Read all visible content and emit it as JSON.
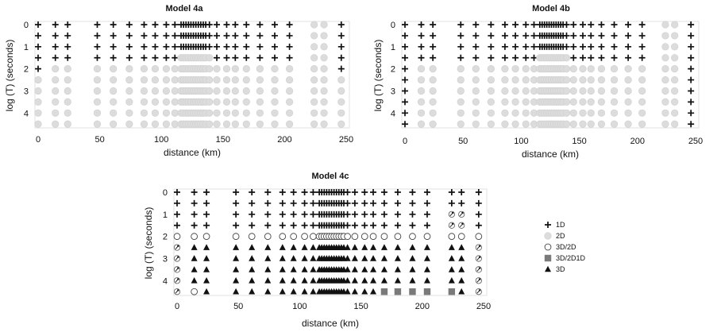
{
  "figure": {
    "panel_order": [
      "4a",
      "4b",
      "4c"
    ]
  },
  "legend": {
    "items": [
      {
        "key": "1D",
        "label": "1D"
      },
      {
        "key": "2D",
        "label": "2D"
      },
      {
        "key": "3D/2D",
        "label": "3D/2D"
      },
      {
        "key": "3D/2D1D",
        "label": "3D/2D1D"
      },
      {
        "key": "3D",
        "label": "3D"
      }
    ]
  },
  "chart_data": [
    {
      "id": "4a",
      "type": "scatter",
      "title": "Model 4a",
      "xlabel": "distance (km)",
      "ylabel": "log (T) (seconds)",
      "xlim": [
        0,
        250
      ],
      "ylim": [
        0,
        4.6
      ],
      "x_ticks": [
        "0",
        "50",
        "100",
        "150",
        "200",
        "250"
      ],
      "y_ticks": [
        "0",
        "1",
        "2",
        "3",
        "4"
      ],
      "y_inverted": true,
      "grid": false,
      "sites_km": [
        0,
        14,
        24,
        48,
        61,
        74,
        86,
        95,
        104,
        111,
        116,
        118,
        120,
        122,
        124,
        126,
        128,
        130,
        132,
        134,
        136,
        139,
        145,
        153,
        160,
        169,
        180,
        192,
        204,
        224,
        232,
        246
      ],
      "periods_logT": [
        0,
        0.5,
        1.0,
        1.5,
        2.0,
        2.5,
        3.0,
        3.5,
        4.0,
        4.5
      ],
      "classification_rule": [
        {
          "x_km": [
            0,
            0
          ],
          "logT_max": 2.0,
          "class": "1D"
        },
        {
          "x_km": [
            246,
            246
          ],
          "logT_max": 2.0,
          "class": "1D"
        },
        {
          "x_km": [
            14,
            74
          ],
          "logT_max": 1.5,
          "class": "1D"
        },
        {
          "x_km": [
            86,
            111
          ],
          "logT_max": 1.5,
          "class": "1D"
        },
        {
          "x_km": [
            116,
            139
          ],
          "logT_max": 1.0,
          "class": "1D"
        },
        {
          "x_km": [
            145,
            204
          ],
          "logT_max": 1.5,
          "class": "1D"
        },
        {
          "x_km": [
            224,
            232
          ],
          "logT_max": -1,
          "class": "1D"
        }
      ],
      "default_class": "2D"
    },
    {
      "id": "4b",
      "type": "scatter",
      "title": "Model 4b",
      "xlabel": "distance (km)",
      "ylabel": "log (T) (seconds)",
      "xlim": [
        0,
        250
      ],
      "ylim": [
        0,
        4.6
      ],
      "x_ticks": [
        "0",
        "50",
        "100",
        "150",
        "200",
        "250"
      ],
      "y_ticks": [
        "0",
        "1",
        "2",
        "3",
        "4"
      ],
      "y_inverted": true,
      "grid": false,
      "sites_km": [
        0,
        14,
        24,
        48,
        61,
        74,
        86,
        95,
        104,
        111,
        116,
        118,
        120,
        122,
        124,
        126,
        128,
        130,
        132,
        134,
        136,
        139,
        145,
        153,
        160,
        169,
        180,
        192,
        204,
        224,
        232,
        246
      ],
      "periods_logT": [
        0,
        0.5,
        1.0,
        1.5,
        2.0,
        2.5,
        3.0,
        3.5,
        4.0,
        4.5
      ],
      "classification_rule": [
        {
          "x_km": [
            0,
            0
          ],
          "logT_max": 4.5,
          "class": "1D"
        },
        {
          "x_km": [
            246,
            246
          ],
          "logT_max": 4.5,
          "class": "1D"
        },
        {
          "x_km": [
            14,
            74
          ],
          "logT_max": 1.5,
          "class": "1D"
        },
        {
          "x_km": [
            86,
            111
          ],
          "logT_max": 1.5,
          "class": "1D"
        },
        {
          "x_km": [
            116,
            139
          ],
          "logT_max": 1.0,
          "class": "1D"
        },
        {
          "x_km": [
            145,
            204
          ],
          "logT_max": 1.5,
          "class": "1D"
        },
        {
          "x_km": [
            224,
            232
          ],
          "logT_max": -1,
          "class": "1D"
        }
      ],
      "default_class": "2D"
    },
    {
      "id": "4c",
      "type": "scatter",
      "title": "Model 4c",
      "xlabel": "distance (km)",
      "ylabel": "log (T) (seconds)",
      "xlim": [
        0,
        250
      ],
      "ylim": [
        0,
        4.6
      ],
      "x_ticks": [
        "0",
        "50",
        "100",
        "150",
        "200",
        "250"
      ],
      "y_ticks": [
        "0",
        "1",
        "2",
        "3",
        "4"
      ],
      "y_inverted": true,
      "grid": false,
      "sites_km": [
        0,
        14,
        24,
        48,
        61,
        74,
        86,
        95,
        104,
        111,
        116,
        118,
        120,
        122,
        124,
        126,
        128,
        130,
        132,
        134,
        136,
        139,
        145,
        153,
        160,
        169,
        180,
        192,
        204,
        224,
        232,
        246
      ],
      "periods_logT": [
        0,
        0.5,
        1.0,
        1.5,
        2.0,
        2.5,
        3.0,
        3.5,
        4.0,
        4.5
      ],
      "arrow_sites_km": [
        224,
        232
      ],
      "bottom_row_3D2D1D_km": [
        169,
        180,
        192,
        204,
        224
      ],
      "bottom_row_3D2D_km": [
        14
      ],
      "classification_rule": [
        {
          "logT_max": 1.5,
          "class": "1D"
        },
        {
          "logT": 2.0,
          "class": "3D/2D"
        },
        {
          "logT_min": 2.5,
          "class": "3D"
        }
      ]
    }
  ]
}
